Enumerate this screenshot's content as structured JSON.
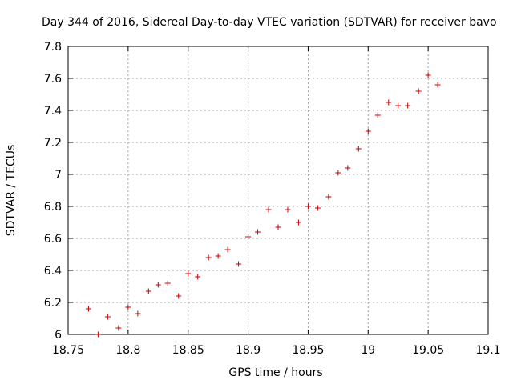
{
  "chart_data": {
    "type": "scatter",
    "title": "Day 344 of 2016, Sidereal Day-to-day VTEC variation (SDTVAR) for receiver bavo",
    "xlabel": "GPS time / hours",
    "ylabel": "SDTVAR / TECUs",
    "xlim": [
      18.75,
      19.1
    ],
    "ylim": [
      6.0,
      7.8
    ],
    "x_ticks": [
      "18.75",
      "18.8",
      "18.85",
      "18.9",
      "18.95",
      "19",
      "19.05",
      "19.1"
    ],
    "y_ticks": [
      "6",
      "6.2",
      "6.4",
      "6.6",
      "6.8",
      "7",
      "7.2",
      "7.4",
      "7.6",
      "7.8"
    ],
    "grid": true,
    "marker": "plus",
    "marker_color": "#cc0000",
    "points": [
      {
        "x": 18.767,
        "y": 6.16
      },
      {
        "x": 18.775,
        "y": 6.0
      },
      {
        "x": 18.783,
        "y": 6.11
      },
      {
        "x": 18.792,
        "y": 6.04
      },
      {
        "x": 18.8,
        "y": 6.17
      },
      {
        "x": 18.808,
        "y": 6.13
      },
      {
        "x": 18.817,
        "y": 6.27
      },
      {
        "x": 18.825,
        "y": 6.31
      },
      {
        "x": 18.833,
        "y": 6.32
      },
      {
        "x": 18.842,
        "y": 6.24
      },
      {
        "x": 18.85,
        "y": 6.38
      },
      {
        "x": 18.858,
        "y": 6.36
      },
      {
        "x": 18.867,
        "y": 6.48
      },
      {
        "x": 18.875,
        "y": 6.49
      },
      {
        "x": 18.883,
        "y": 6.53
      },
      {
        "x": 18.892,
        "y": 6.44
      },
      {
        "x": 18.9,
        "y": 6.61
      },
      {
        "x": 18.908,
        "y": 6.64
      },
      {
        "x": 18.917,
        "y": 6.78
      },
      {
        "x": 18.925,
        "y": 6.67
      },
      {
        "x": 18.933,
        "y": 6.78
      },
      {
        "x": 18.942,
        "y": 6.7
      },
      {
        "x": 18.95,
        "y": 6.8
      },
      {
        "x": 18.958,
        "y": 6.79
      },
      {
        "x": 18.967,
        "y": 6.86
      },
      {
        "x": 18.975,
        "y": 7.01
      },
      {
        "x": 18.983,
        "y": 7.04
      },
      {
        "x": 18.992,
        "y": 7.16
      },
      {
        "x": 19.0,
        "y": 7.27
      },
      {
        "x": 19.008,
        "y": 7.37
      },
      {
        "x": 19.017,
        "y": 7.45
      },
      {
        "x": 19.025,
        "y": 7.43
      },
      {
        "x": 19.033,
        "y": 7.43
      },
      {
        "x": 19.042,
        "y": 7.52
      },
      {
        "x": 19.05,
        "y": 7.62
      },
      {
        "x": 19.058,
        "y": 7.56
      }
    ]
  }
}
